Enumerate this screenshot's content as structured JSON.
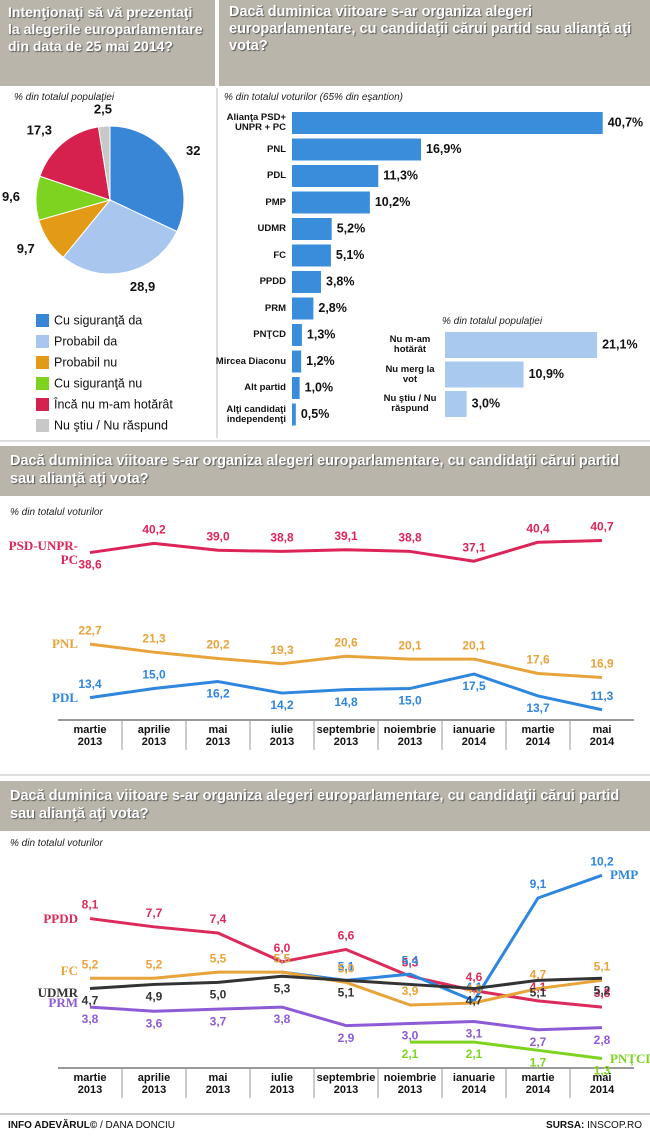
{
  "chart_data": [
    {
      "type": "pie",
      "title": "Intenţionaţi să vă prezentaţi la alegerile europarlamentare din data de 25 mai 2014?",
      "subtitle": "% din totalul populaţiei",
      "categories": [
        "Cu siguranţă da",
        "Probabil da",
        "Probabil nu",
        "Cu siguranţă nu",
        "Încă nu m-am hotărât",
        "Nu ştiu / Nu răspund"
      ],
      "values": [
        32,
        28.9,
        9.7,
        9.6,
        17.3,
        2.5
      ],
      "value_labels": [
        "32",
        "28,9",
        "9,7",
        "9,6",
        "17,3",
        "2,5"
      ],
      "colors": [
        "#3a86d6",
        "#a9c6ee",
        "#e39a16",
        "#7ed321",
        "#d6204e",
        "#c8c8c8"
      ]
    },
    {
      "type": "barh",
      "title": "Dacă duminica viitoare s-ar organiza alegeri europarlamentare, cu candidaţii cărui partid sau alianţă aţi vota?",
      "subtitle": "% din totalul voturilor (65% din eşantion)",
      "categories": [
        "Alianţa PSD+ UNPR + PC",
        "PNL",
        "PDL",
        "PMP",
        "UDMR",
        "FC",
        "PPDD",
        "PRM",
        "PNŢCD",
        "Mircea Diaconu",
        "Alt partid",
        "Alţi candidaţi independenţi"
      ],
      "values": [
        40.7,
        16.9,
        11.3,
        10.2,
        5.2,
        5.1,
        3.8,
        2.8,
        1.3,
        1.2,
        1.0,
        0.5
      ],
      "value_labels": [
        "40,7%",
        "16,9%",
        "11,3%",
        "10,2%",
        "5,2%",
        "5,1%",
        "3,8%",
        "2,8%",
        "1,3%",
        "1,2%",
        "1,0%",
        "0,5%"
      ],
      "color": "#3a8ddb",
      "xlim": [
        0,
        41
      ]
    },
    {
      "type": "barh",
      "subtitle": "% din totalul populaţiei",
      "categories": [
        "Nu m-am hotărât",
        "Nu merg la vot",
        "Nu ştiu / Nu răspund"
      ],
      "values": [
        21.1,
        10.9,
        3.0
      ],
      "value_labels": [
        "21,1%",
        "10,9%",
        "3,0%"
      ],
      "color": "#a9c9ef",
      "xlim": [
        0,
        21.5
      ]
    },
    {
      "type": "line",
      "title": "Dacă duminica viitoare s-ar organiza alegeri europarlamentare, cu candidaţii cărui partid sau alianţă aţi vota?",
      "subtitle": "% din totalul voturilor",
      "categories": [
        "martie 2013",
        "aprilie 2013",
        "mai 2013",
        "iulie 2013",
        "septembrie 2013",
        "noiembrie 2013",
        "ianuarie 2014",
        "martie 2014",
        "mai 2014"
      ],
      "series": [
        {
          "name": "PSD-UNPR-PC",
          "color": "#dc2459",
          "values": [
            38.6,
            40.2,
            39.0,
            38.8,
            39.1,
            38.8,
            37.1,
            40.4,
            40.7
          ],
          "value_labels": [
            "38,6",
            "40,2",
            "39,0",
            "38,8",
            "39,1",
            "38,8",
            "37,1",
            "40,4",
            "40,7"
          ]
        },
        {
          "name": "PNL",
          "color": "#e8a33a",
          "values": [
            22.7,
            21.3,
            20.2,
            19.3,
            20.6,
            20.1,
            20.1,
            17.6,
            16.9
          ],
          "value_labels": [
            "22,7",
            "21,3",
            "20,2",
            "19,3",
            "20,6",
            "20,1",
            "20,1",
            "17,6",
            "16,9"
          ]
        },
        {
          "name": "PDL",
          "color": "#2f86de",
          "values": [
            13.4,
            15.0,
            16.2,
            14.2,
            14.8,
            15.0,
            17.5,
            13.7,
            11.3
          ],
          "value_labels": [
            "13,4",
            "15,0",
            "16,2",
            "14,2",
            "14,8",
            "15,0",
            "17,5",
            "13,7",
            "11,3"
          ]
        }
      ],
      "ylim": [
        9,
        42
      ]
    },
    {
      "type": "line",
      "title": "Dacă duminica viitoare s-ar organiza alegeri europarlamentare, cu candidaţii cărui partid sau alianţă aţi vota?",
      "subtitle": "% din totalul voturilor",
      "categories": [
        "martie 2013",
        "aprilie 2013",
        "mai 2013",
        "iulie 2013",
        "septembrie 2013",
        "noiembrie 2013",
        "ianuarie 2014",
        "martie 2014",
        "mai 2014"
      ],
      "series": [
        {
          "name": "PPDD",
          "color": "#dc2a5b",
          "values": [
            8.1,
            7.7,
            7.4,
            6.0,
            6.6,
            5.3,
            4.6,
            4.1,
            3.8
          ],
          "value_labels": [
            "8,1",
            "7,7",
            "7,4",
            "6,0",
            "6,6",
            "5,3",
            "4,6",
            "4,1",
            "3,8"
          ]
        },
        {
          "name": "PMP",
          "color": "#2e86de",
          "values": [
            null,
            null,
            null,
            5.5,
            5.1,
            5.4,
            4.1,
            9.1,
            10.2
          ],
          "value_labels": [
            null,
            null,
            null,
            "5,5",
            "5,1",
            "5,4",
            "4,1",
            "9,1",
            "10,2"
          ]
        },
        {
          "name": "FC",
          "color": "#e8a33a",
          "values": [
            5.2,
            5.2,
            5.5,
            5.5,
            5.0,
            3.9,
            4.0,
            4.7,
            5.1
          ],
          "value_labels": [
            "5,2",
            "5,2",
            "5,5",
            "5,5",
            "5,0",
            "3,9",
            "4,0",
            "4,7",
            "5,1"
          ]
        },
        {
          "name": "UDMR",
          "color": "#333333",
          "values": [
            4.7,
            4.9,
            5.0,
            5.3,
            5.1,
            4.9,
            4.7,
            5.1,
            5.2
          ],
          "value_labels": [
            "4,7",
            "4,9",
            "5,0",
            "5,3",
            "5,1",
            null,
            "4,7",
            "5,1",
            "5,2"
          ]
        },
        {
          "name": "PRM",
          "color": "#8e5bd6",
          "values": [
            3.8,
            3.6,
            3.7,
            3.8,
            2.9,
            3.0,
            3.1,
            2.7,
            2.8
          ],
          "value_labels": [
            "3,8",
            "3,6",
            "3,7",
            "3,8",
            "2,9",
            "3,0",
            "3,1",
            "2,7",
            "2,8"
          ]
        },
        {
          "name": "PNŢCD",
          "color": "#7ed321",
          "values": [
            null,
            null,
            null,
            null,
            null,
            2.1,
            2.1,
            1.7,
            1.3
          ],
          "value_labels": [
            null,
            null,
            null,
            null,
            null,
            "2,1",
            "2,1",
            "1,7",
            "1,3"
          ]
        }
      ],
      "ylim": [
        0.5,
        10.8
      ]
    }
  ],
  "footer": {
    "credit": "INFO ADEVĂRUL©",
    "author": "/ DANA DONCIU",
    "source_label": "SURSA:",
    "source": "INSCOP.RO"
  }
}
